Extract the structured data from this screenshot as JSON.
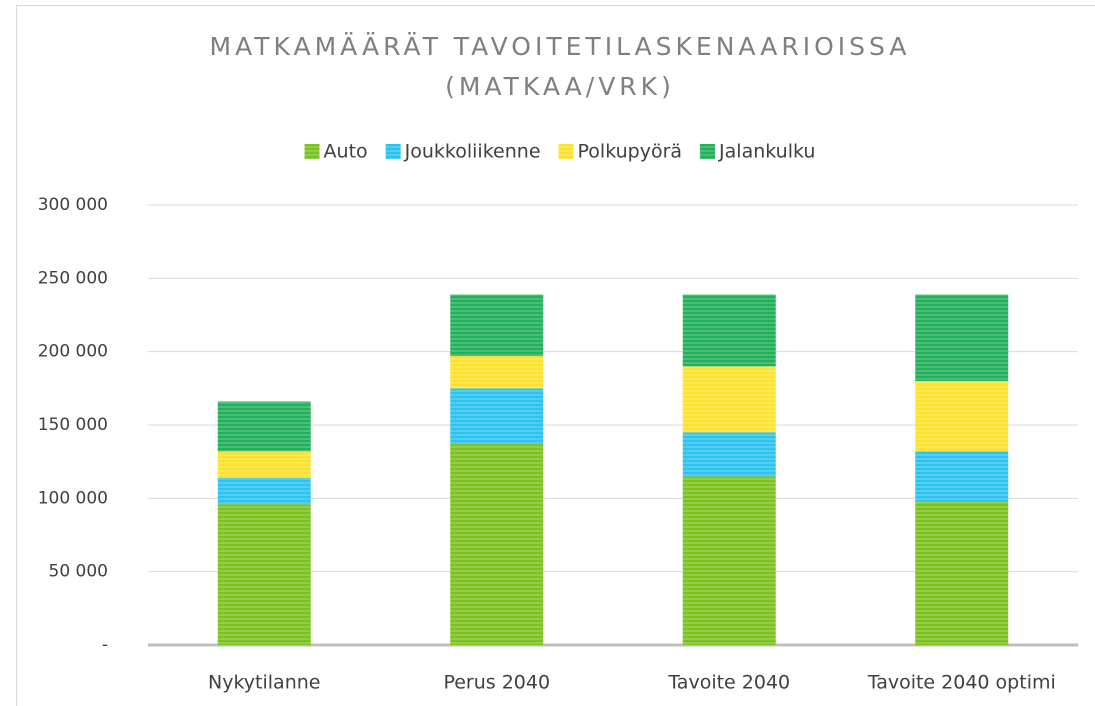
{
  "chart_data": {
    "type": "stacked_bar",
    "title": [
      "MATKAMÄÄRÄT TAVOITETILASKENAARIOISSA",
      "(MATKAA/VRK)"
    ],
    "categories": [
      "Nykytilanne",
      "Perus 2040",
      "Tavoite 2040",
      "Tavoite 2040 optimi"
    ],
    "series": [
      {
        "name": "Auto",
        "color": "#7cc11f",
        "values": [
          96000,
          137000,
          115000,
          98000
        ]
      },
      {
        "name": "Joukkoliikenne",
        "color": "#2cc3ee",
        "values": [
          18000,
          38000,
          30000,
          34000
        ]
      },
      {
        "name": "Polkupyörä",
        "color": "#fde22d",
        "values": [
          18000,
          22000,
          45000,
          48000
        ]
      },
      {
        "name": "Jalankulku",
        "color": "#22b05a",
        "values": [
          34000,
          42000,
          49000,
          59000
        ]
      }
    ],
    "ylim": [
      0,
      300000
    ],
    "yticks": [
      {
        "value": 0,
        "label": "-"
      },
      {
        "value": 50000,
        "label": "50 000"
      },
      {
        "value": 100000,
        "label": "100 000"
      },
      {
        "value": 150000,
        "label": "150 000"
      },
      {
        "value": 200000,
        "label": "200 000"
      },
      {
        "value": 250000,
        "label": "250 000"
      },
      {
        "value": 300000,
        "label": "300 000"
      }
    ],
    "grid": true,
    "legend": "top"
  }
}
